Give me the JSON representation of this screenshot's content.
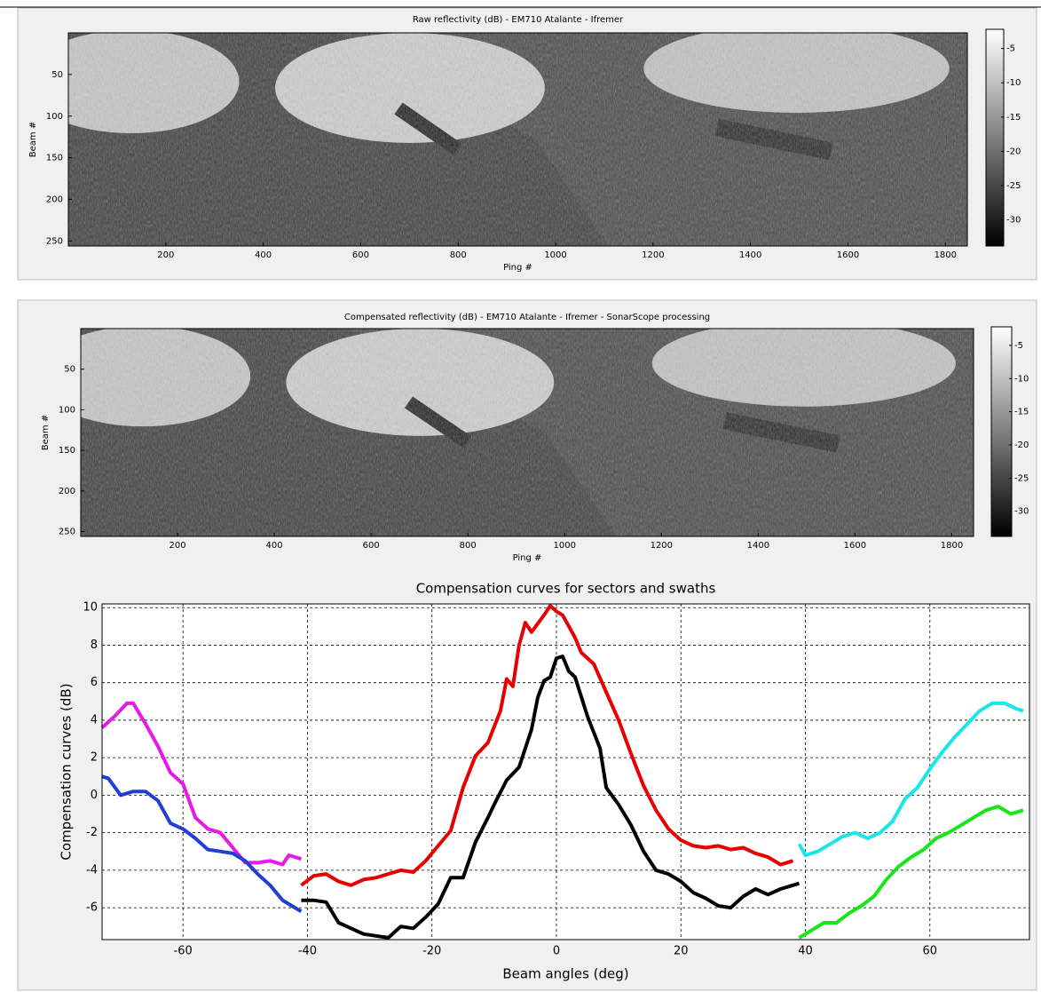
{
  "chart_data": [
    {
      "type": "image",
      "title": "Raw reflectivity  (dB)  - EM710 Atalante - Ifremer",
      "x_label": "Ping #",
      "y_label": "Beam #",
      "xlim": [
        0,
        1845
      ],
      "ylim": [
        0,
        256
      ],
      "xticks": [
        200,
        400,
        600,
        800,
        1000,
        1200,
        1400,
        1600,
        1800
      ],
      "yticks": [
        50,
        100,
        150,
        200,
        250
      ],
      "clim": [
        -33.8,
        -2.2
      ],
      "cticks": [
        -5,
        -10,
        -15,
        -20,
        -25,
        -30
      ],
      "colormap": "gray"
    },
    {
      "type": "image",
      "title": "Compensated reflectivity  (dB)  - EM710 Atalante - Ifremer - SonarScope processing",
      "x_label": "Ping #",
      "y_label": "Beam #",
      "xlim": [
        0,
        1845
      ],
      "ylim": [
        0,
        256
      ],
      "xticks": [
        200,
        400,
        600,
        800,
        1000,
        1200,
        1400,
        1600,
        1800
      ],
      "yticks": [
        50,
        100,
        150,
        200,
        250
      ],
      "clim": [
        -33.8,
        -2.2
      ],
      "cticks": [
        -5,
        -10,
        -15,
        -20,
        -25,
        -30
      ],
      "colormap": "gray"
    },
    {
      "type": "line",
      "title": "Compensation curves for sectors and swaths",
      "x_label": "Beam angles (deg)",
      "y_label": "Compensation curves (dB)",
      "xlim": [
        -73,
        76
      ],
      "ylim": [
        -7.7,
        10.2
      ],
      "xticks": [
        -60,
        -40,
        -20,
        0,
        20,
        40,
        60
      ],
      "yticks": [
        -6,
        -4,
        -2,
        0,
        2,
        4,
        6,
        8,
        10
      ],
      "grid": true,
      "series": [
        {
          "color": "#e619e6",
          "x": [
            -73,
            -71,
            -69,
            -68,
            -66,
            -64,
            -62,
            -60,
            -58,
            -56,
            -54,
            -52,
            -50,
            -48,
            -46,
            -44,
            -43,
            -41
          ],
          "values": [
            3.6,
            4.2,
            4.9,
            4.9,
            3.8,
            2.6,
            1.2,
            0.6,
            -1.2,
            -1.8,
            -2.0,
            -2.8,
            -3.6,
            -3.6,
            -3.5,
            -3.7,
            -3.2,
            -3.4
          ]
        },
        {
          "color": "#1f3fd6",
          "x": [
            -73,
            -72,
            -70,
            -68,
            -66,
            -64,
            -62,
            -60,
            -58,
            -56,
            -54,
            -52,
            -50,
            -48,
            -46,
            -44,
            -42,
            -41
          ],
          "values": [
            1.0,
            0.9,
            0.0,
            0.2,
            0.2,
            -0.3,
            -1.5,
            -1.8,
            -2.3,
            -2.9,
            -3.0,
            -3.1,
            -3.5,
            -4.2,
            -4.8,
            -5.6,
            -6.0,
            -6.2
          ]
        },
        {
          "color": "#e60000",
          "x": [
            -41,
            -39,
            -37,
            -35,
            -33,
            -31,
            -29,
            -27,
            -25,
            -23,
            -21,
            -19,
            -17,
            -15,
            -13,
            -11,
            -9,
            -8,
            -7,
            -6,
            -5,
            -4,
            -2,
            -1,
            0,
            1,
            3,
            4,
            6,
            8,
            10,
            12,
            14,
            16,
            18,
            20,
            22,
            24,
            26,
            28,
            30,
            32,
            34,
            36,
            38
          ],
          "values": [
            -4.8,
            -4.3,
            -4.2,
            -4.6,
            -4.8,
            -4.5,
            -4.4,
            -4.2,
            -4.0,
            -4.1,
            -3.5,
            -2.7,
            -1.9,
            0.4,
            2.1,
            2.8,
            4.5,
            6.2,
            5.8,
            8.0,
            9.2,
            8.7,
            9.6,
            10.1,
            9.8,
            9.6,
            8.4,
            7.6,
            7.0,
            5.5,
            4.0,
            2.2,
            0.5,
            -0.8,
            -1.8,
            -2.4,
            -2.7,
            -2.8,
            -2.7,
            -2.9,
            -2.8,
            -3.1,
            -3.3,
            -3.7,
            -3.5
          ]
        },
        {
          "color": "#000000",
          "x": [
            -41,
            -39,
            -37,
            -35,
            -33,
            -31,
            -29,
            -27,
            -25,
            -23,
            -21,
            -19,
            -17,
            -15,
            -13,
            -11,
            -10,
            -8,
            -6,
            -4,
            -3,
            -2,
            -1,
            0,
            1,
            2,
            3,
            5,
            7,
            8,
            10,
            12,
            14,
            16,
            18,
            20,
            22,
            24,
            26,
            28,
            30,
            32,
            34,
            36,
            38,
            39
          ],
          "values": [
            -5.6,
            -5.6,
            -5.7,
            -6.8,
            -7.1,
            -7.4,
            -7.5,
            -7.6,
            -7.0,
            -7.1,
            -6.5,
            -5.8,
            -4.4,
            -4.4,
            -2.5,
            -1.2,
            -0.5,
            0.8,
            1.5,
            3.5,
            5.2,
            6.1,
            6.3,
            7.3,
            7.4,
            6.6,
            6.3,
            4.2,
            2.5,
            0.4,
            -0.5,
            -1.6,
            -3.0,
            -4.0,
            -4.2,
            -4.6,
            -5.2,
            -5.5,
            -5.9,
            -6.0,
            -5.4,
            -5.0,
            -5.3,
            -5.0,
            -4.8,
            -4.7
          ]
        },
        {
          "color": "#19e6e6",
          "x": [
            39,
            40,
            42,
            44,
            46,
            48,
            50,
            52,
            54,
            56,
            58,
            60,
            62,
            64,
            66,
            68,
            70,
            72,
            74,
            75
          ],
          "values": [
            -2.6,
            -3.2,
            -3.0,
            -2.6,
            -2.2,
            -2.0,
            -2.3,
            -2.0,
            -1.4,
            -0.2,
            0.4,
            1.4,
            2.3,
            3.1,
            3.8,
            4.5,
            4.9,
            4.9,
            4.6,
            4.5
          ]
        },
        {
          "color": "#19e619",
          "x": [
            39,
            41,
            43,
            45,
            47,
            49,
            51,
            53,
            55,
            57,
            59,
            61,
            63,
            65,
            67,
            69,
            71,
            73,
            75
          ],
          "values": [
            -7.6,
            -7.2,
            -6.8,
            -6.8,
            -6.3,
            -5.9,
            -5.4,
            -4.5,
            -3.8,
            -3.3,
            -2.9,
            -2.3,
            -2.0,
            -1.6,
            -1.2,
            -0.8,
            -0.6,
            -1.0,
            -0.8
          ]
        }
      ]
    }
  ]
}
